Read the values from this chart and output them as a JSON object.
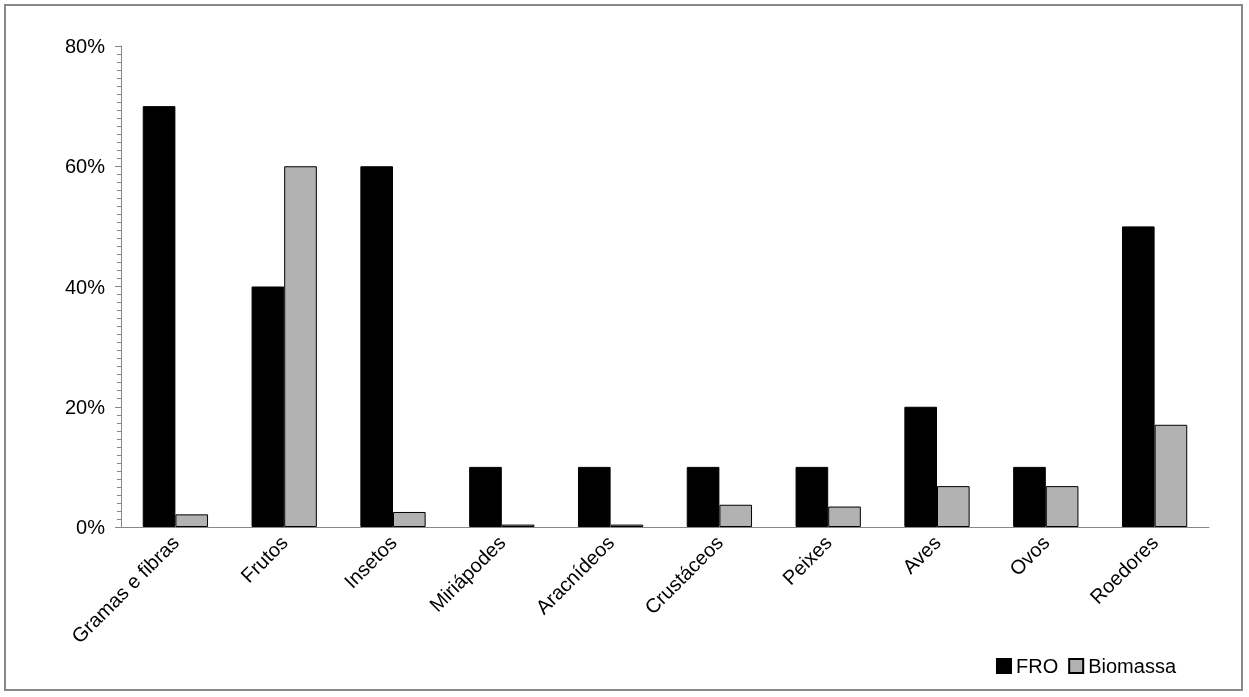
{
  "chart_data": {
    "type": "bar",
    "categories": [
      "Gramas e fibras",
      "Frutos",
      "Insetos",
      "Miriápodes",
      "Aracnídeos",
      "Crustáceos",
      "Peixes",
      "Aves",
      "Ovos",
      "Roedores"
    ],
    "series": [
      {
        "name": "FRO",
        "color": "#000000",
        "values": [
          70,
          40,
          60,
          10,
          10,
          10,
          10,
          20,
          10,
          50
        ]
      },
      {
        "name": "Biomassa",
        "color": "#b2b2b2",
        "values": [
          2.1,
          60,
          2.5,
          0.4,
          0.4,
          3.7,
          3.4,
          6.8,
          6.8,
          17.0
        ]
      }
    ],
    "ylim": [
      0,
      80
    ],
    "yticks": [
      {
        "value": 0,
        "label": "0%"
      },
      {
        "value": 20,
        "label": "20%"
      },
      {
        "value": 40,
        "label": "40%"
      },
      {
        "value": 60,
        "label": "60%"
      },
      {
        "value": 80,
        "label": "80%"
      }
    ],
    "grid": false,
    "legend": "bottom right"
  }
}
